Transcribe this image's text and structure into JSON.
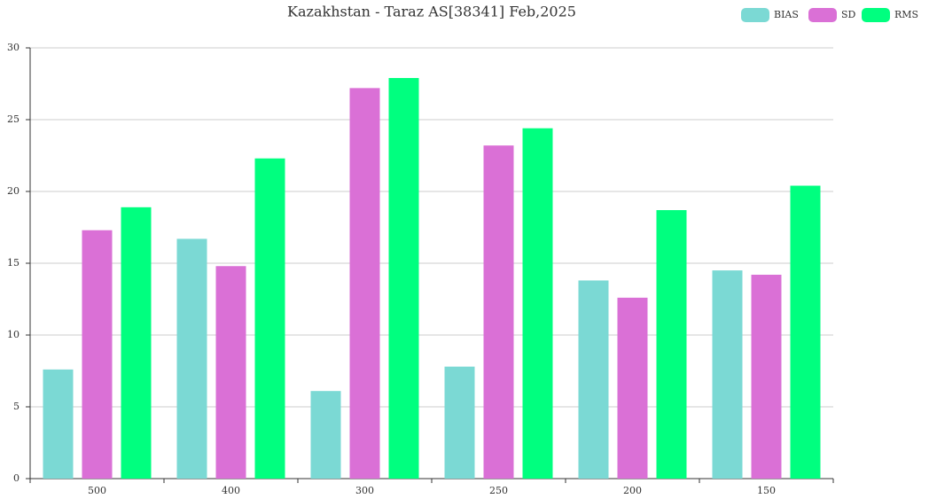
{
  "chart_data": {
    "type": "bar",
    "title": "Kazakhstan - Taraz AS[38341] Feb,2025",
    "categories": [
      "500",
      "400",
      "300",
      "250",
      "200",
      "150"
    ],
    "series": [
      {
        "name": "BIAS",
        "color": "#7bd9d4",
        "values": [
          7.6,
          16.7,
          6.1,
          7.8,
          13.8,
          14.5
        ]
      },
      {
        "name": "SD",
        "color": "#da70d6",
        "values": [
          17.3,
          14.8,
          27.2,
          23.2,
          12.6,
          14.2
        ]
      },
      {
        "name": "RMS",
        "color": "#00ff7f",
        "values": [
          18.9,
          22.3,
          27.9,
          24.4,
          18.7,
          20.4
        ]
      }
    ],
    "ylim": [
      0,
      30
    ],
    "yticks": [
      0,
      5,
      10,
      15,
      20,
      25,
      30
    ],
    "grid": true,
    "legend": "top-right"
  }
}
